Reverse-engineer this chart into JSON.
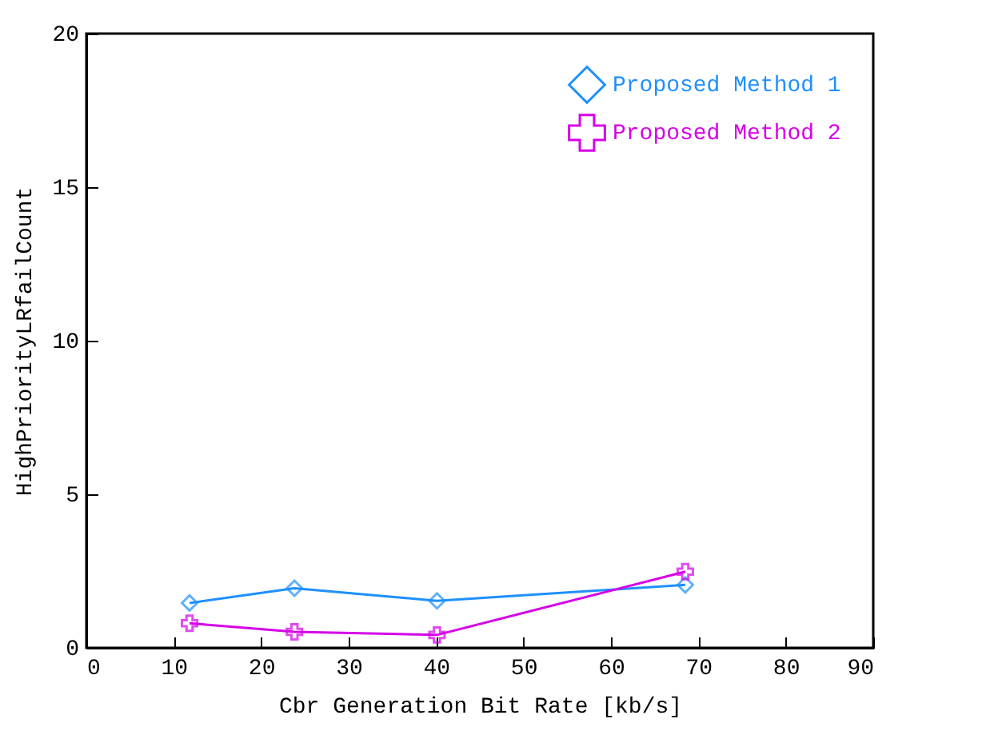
{
  "chart_data": {
    "type": "line",
    "xlabel": "Cbr Generation Bit Rate [kb/s]",
    "ylabel": "HighPriorityLRfailCount",
    "x": [
      11.8,
      23.8,
      40.1,
      68.5
    ],
    "series": [
      {
        "name": "Proposed Method 1",
        "color": "#1e90ff",
        "marker": "diamond",
        "values": [
          1.46,
          1.94,
          1.53,
          2.05
        ]
      },
      {
        "name": "Proposed Method 2",
        "color": "#d500e8",
        "marker": "cross",
        "values": [
          0.8,
          0.52,
          0.42,
          2.48
        ]
      }
    ],
    "xlim": [
      0,
      90
    ],
    "xticks": [
      0,
      10,
      20,
      30,
      40,
      50,
      60,
      70,
      80,
      90
    ],
    "ylim": [
      0,
      20
    ],
    "yticks": [
      0,
      5,
      10,
      15,
      20
    ],
    "grid": false,
    "legend": "top right",
    "line_style": "solid"
  }
}
